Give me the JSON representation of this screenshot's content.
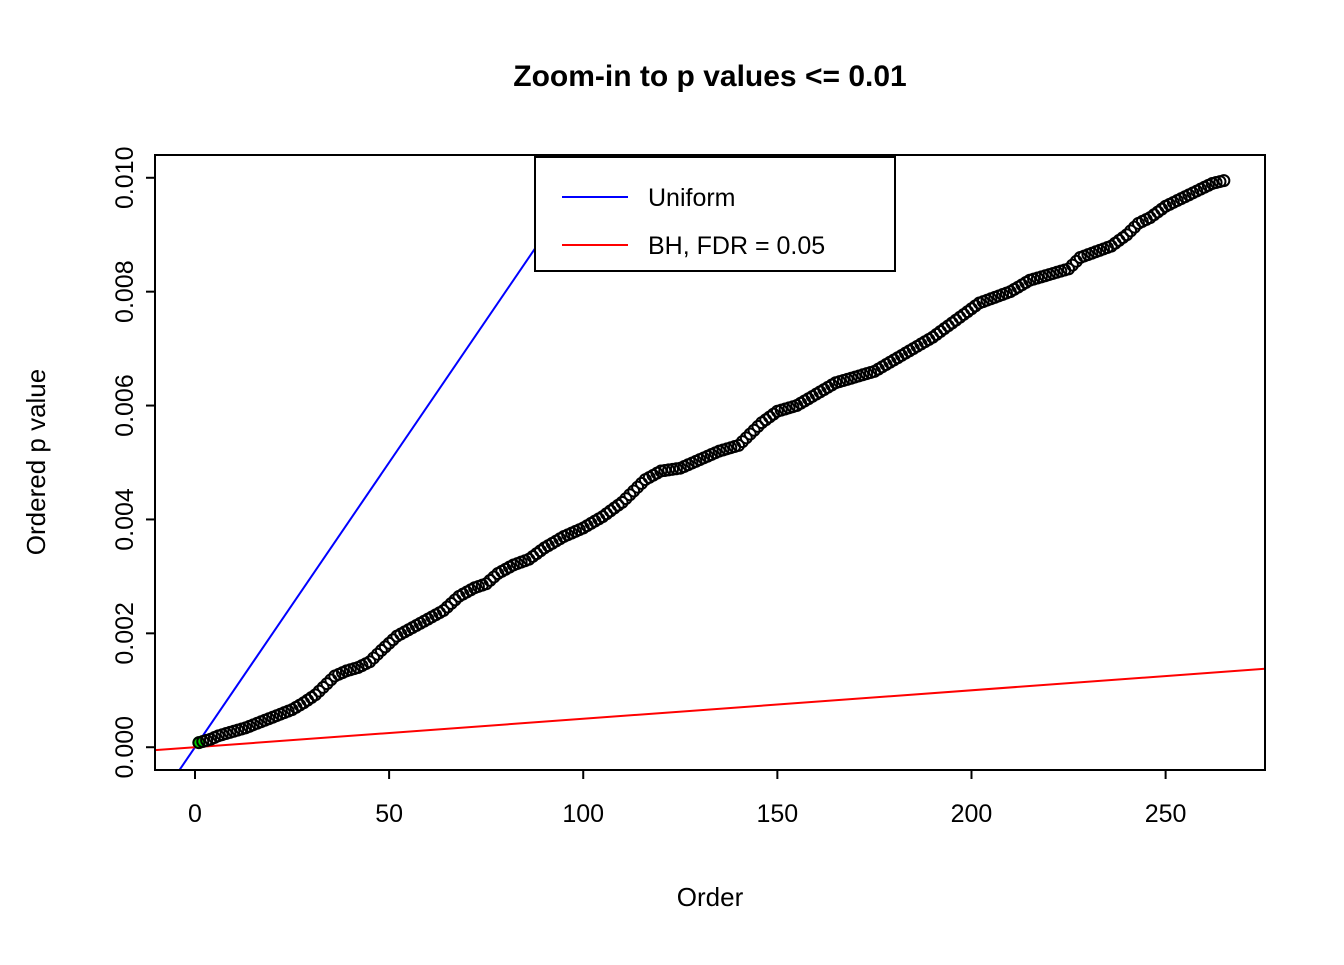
{
  "title": "Zoom-in to p values <= 0.01",
  "chart_data": {
    "type": "scatter",
    "title": "Zoom-in to p values <= 0.01",
    "xlabel": "Order",
    "ylabel": "Ordered p value",
    "xlim": [
      -10.3,
      275.6
    ],
    "ylim": [
      -0.0004,
      0.0104
    ],
    "x_ticks": [
      0,
      50,
      100,
      150,
      200,
      250
    ],
    "x_tick_labels": [
      "0",
      "50",
      "100",
      "150",
      "200",
      "250"
    ],
    "y_ticks": [
      0,
      0.002,
      0.004,
      0.006,
      0.008,
      0.01
    ],
    "y_tick_labels": [
      "0.000",
      "0.002",
      "0.004",
      "0.006",
      "0.008",
      "0.010"
    ],
    "grid": false,
    "point_color": "#000000",
    "n_points": 265,
    "points_sampled": [
      [
        1,
        8e-05
      ],
      [
        2,
        0.0001
      ],
      [
        4,
        0.00014
      ],
      [
        6,
        0.0002
      ],
      [
        8,
        0.00024
      ],
      [
        10,
        0.00028
      ],
      [
        13,
        0.00034
      ],
      [
        16,
        0.00042
      ],
      [
        19,
        0.0005
      ],
      [
        22,
        0.00058
      ],
      [
        25,
        0.00066
      ],
      [
        28,
        0.00078
      ],
      [
        31,
        0.00092
      ],
      [
        33,
        0.00105
      ],
      [
        36,
        0.00125
      ],
      [
        39,
        0.00134
      ],
      [
        42,
        0.0014
      ],
      [
        45,
        0.0015
      ],
      [
        48,
        0.0017
      ],
      [
        52,
        0.00195
      ],
      [
        56,
        0.0021
      ],
      [
        60,
        0.00225
      ],
      [
        64,
        0.0024
      ],
      [
        68,
        0.00265
      ],
      [
        72,
        0.0028
      ],
      [
        75,
        0.00287
      ],
      [
        78,
        0.00305
      ],
      [
        82,
        0.0032
      ],
      [
        86,
        0.0033
      ],
      [
        90,
        0.0035
      ],
      [
        95,
        0.0037
      ],
      [
        100,
        0.00385
      ],
      [
        105,
        0.00405
      ],
      [
        110,
        0.0043
      ],
      [
        113,
        0.0045
      ],
      [
        116,
        0.0047
      ],
      [
        120,
        0.00485
      ],
      [
        125,
        0.0049
      ],
      [
        130,
        0.00505
      ],
      [
        135,
        0.0052
      ],
      [
        140,
        0.0053
      ],
      [
        143,
        0.0055
      ],
      [
        146,
        0.0057
      ],
      [
        150,
        0.0059
      ],
      [
        155,
        0.006
      ],
      [
        160,
        0.0062
      ],
      [
        165,
        0.0064
      ],
      [
        170,
        0.0065
      ],
      [
        175,
        0.0066
      ],
      [
        180,
        0.0068
      ],
      [
        185,
        0.007
      ],
      [
        190,
        0.0072
      ],
      [
        194,
        0.0074
      ],
      [
        198,
        0.0076
      ],
      [
        202,
        0.0078
      ],
      [
        206,
        0.0079
      ],
      [
        210,
        0.008
      ],
      [
        215,
        0.0082
      ],
      [
        220,
        0.0083
      ],
      [
        225,
        0.0084
      ],
      [
        228,
        0.0086
      ],
      [
        232,
        0.0087
      ],
      [
        236,
        0.0088
      ],
      [
        240,
        0.009
      ],
      [
        243,
        0.0092
      ],
      [
        246,
        0.0093
      ],
      [
        250,
        0.0095
      ],
      [
        253,
        0.0096
      ],
      [
        256,
        0.0097
      ],
      [
        259,
        0.0098
      ],
      [
        262,
        0.0099
      ],
      [
        265,
        0.00995
      ]
    ],
    "highlight_point": {
      "x": 1,
      "y": 8e-05,
      "color": "#00CC00"
    },
    "lines": [
      {
        "name": "Uniform",
        "color": "#0000FF",
        "slope": 0.0001,
        "intercept": 0
      },
      {
        "name": "BH, FDR = 0.05",
        "color": "#FF0000",
        "slope": 5e-06,
        "intercept": 0
      }
    ],
    "legend": {
      "position": "top-center",
      "entries": [
        {
          "label": "Uniform",
          "color": "#0000FF"
        },
        {
          "label": "BH, FDR = 0.05",
          "color": "#FF0000"
        }
      ]
    }
  }
}
